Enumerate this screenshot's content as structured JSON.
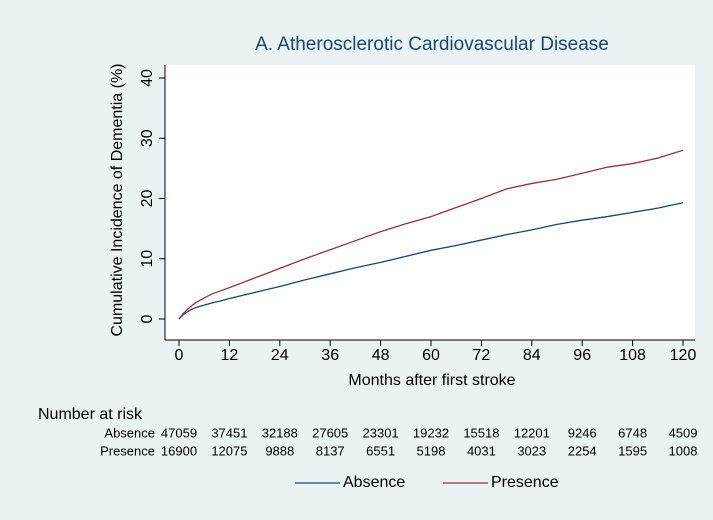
{
  "chart_data": {
    "type": "line",
    "title": "A. Atherosclerotic Cardiovascular Disease",
    "x_label": "Months after first stroke",
    "y_label": "Cumulative Incidence of Dementia (%)",
    "x": [
      0,
      1,
      2,
      3,
      4,
      5,
      6,
      8,
      10,
      12,
      15,
      18,
      21,
      24,
      30,
      36,
      42,
      48,
      54,
      60,
      66,
      72,
      78,
      84,
      90,
      96,
      102,
      108,
      114,
      120
    ],
    "series": [
      {
        "name": "Absence",
        "color": "#1a476f",
        "values": [
          0,
          0.7,
          1.2,
          1.6,
          1.9,
          2.1,
          2.3,
          2.7,
          3.0,
          3.4,
          3.9,
          4.4,
          4.9,
          5.4,
          6.5,
          7.5,
          8.5,
          9.4,
          10.4,
          11.4,
          12.2,
          13.1,
          14.0,
          14.8,
          15.7,
          16.4,
          17.0,
          17.7,
          18.4,
          19.3
        ]
      },
      {
        "name": "Presence",
        "color": "#90353b",
        "values": [
          0,
          0.9,
          1.6,
          2.2,
          2.7,
          3.1,
          3.5,
          4.2,
          4.7,
          5.2,
          6.0,
          6.8,
          7.6,
          8.4,
          10.0,
          11.5,
          13.0,
          14.5,
          15.8,
          17.0,
          18.5,
          20.0,
          21.6,
          22.5,
          23.2,
          24.2,
          25.2,
          25.8,
          26.7,
          28.0
        ]
      }
    ],
    "xlim": [
      0,
      120
    ],
    "xticks": [
      0,
      12,
      24,
      36,
      48,
      60,
      72,
      84,
      96,
      108,
      120
    ],
    "ylim": [
      0,
      40
    ],
    "yticks": [
      0,
      10,
      20,
      30,
      40
    ],
    "legend": "bottom",
    "risk_table": {
      "title": "Number at risk",
      "rows": [
        {
          "name": "Absence",
          "values": [
            47059,
            37451,
            32188,
            27605,
            23301,
            19232,
            15518,
            12201,
            9246,
            6748,
            4509
          ]
        },
        {
          "name": "Presence",
          "values": [
            16900,
            12075,
            9888,
            8137,
            6551,
            5198,
            4031,
            3023,
            2254,
            1595,
            1008
          ]
        }
      ]
    }
  }
}
